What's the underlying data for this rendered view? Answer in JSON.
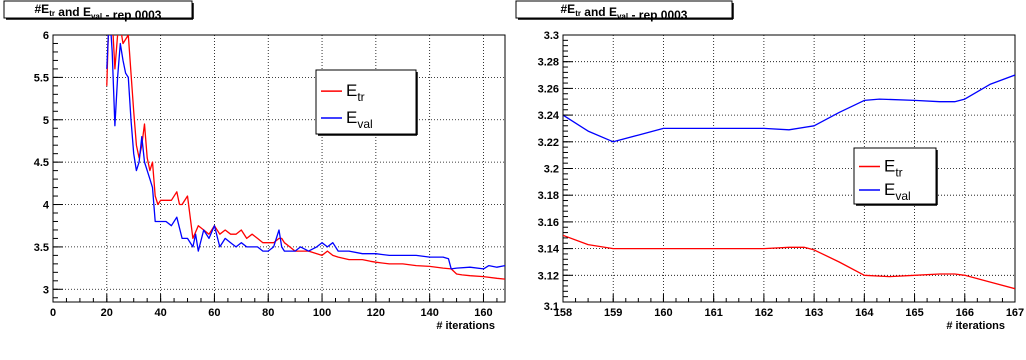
{
  "chart_data": [
    {
      "type": "line",
      "title": "#E_{tr} and E_{val} - rep 0003",
      "title_main": "#E",
      "title_sub1": "tr",
      "title_mid": " and E",
      "title_sub2": "val",
      "title_end": " - rep 0003",
      "xlabel": "# iterations",
      "ylabel": "",
      "xlim": [
        0,
        168
      ],
      "ylim": [
        2.85,
        6
      ],
      "x_ticks": [
        0,
        20,
        40,
        60,
        80,
        100,
        120,
        140,
        160
      ],
      "y_ticks": [
        3,
        3.5,
        4,
        4.5,
        5,
        5.5,
        6
      ],
      "grid": true,
      "legend_position": "top-right",
      "series": [
        {
          "name": "E_tr",
          "label_main": "E",
          "label_sub": "tr",
          "color": "#ff0000",
          "x": [
            20,
            21,
            22,
            23,
            24,
            25,
            26,
            28,
            30,
            31,
            32,
            33,
            34,
            35,
            36,
            37,
            38,
            39,
            40,
            42,
            44,
            46,
            47,
            48,
            50,
            52,
            54,
            56,
            58,
            60,
            62,
            64,
            66,
            68,
            70,
            72,
            74,
            76,
            78,
            80,
            82,
            84,
            85,
            86,
            88,
            90,
            92,
            95,
            100,
            102,
            104,
            106,
            110,
            115,
            118,
            120,
            125,
            130,
            135,
            140,
            145,
            148,
            150,
            152,
            155,
            160,
            165,
            168
          ],
          "y": [
            5.4,
            6.5,
            6.2,
            5.6,
            6.0,
            6.1,
            5.9,
            6.0,
            5.1,
            4.7,
            4.55,
            4.7,
            4.95,
            4.55,
            4.4,
            4.5,
            4.1,
            4.0,
            4.05,
            4.05,
            4.05,
            4.15,
            4.0,
            4.0,
            4.1,
            3.6,
            3.75,
            3.7,
            3.65,
            3.75,
            3.65,
            3.7,
            3.65,
            3.65,
            3.7,
            3.6,
            3.65,
            3.6,
            3.55,
            3.55,
            3.55,
            3.6,
            3.6,
            3.55,
            3.5,
            3.45,
            3.45,
            3.45,
            3.4,
            3.45,
            3.4,
            3.38,
            3.35,
            3.35,
            3.33,
            3.32,
            3.3,
            3.3,
            3.28,
            3.27,
            3.25,
            3.24,
            3.18,
            3.17,
            3.16,
            3.15,
            3.13,
            3.12
          ]
        },
        {
          "name": "E_val",
          "label_main": "E",
          "label_sub": "val",
          "color": "#0000ff",
          "x": [
            20,
            21,
            22,
            23,
            24,
            25,
            26,
            27,
            28,
            29,
            30,
            31,
            32,
            33,
            34,
            35,
            36,
            37,
            38,
            40,
            42,
            44,
            46,
            48,
            50,
            52,
            53,
            54,
            56,
            58,
            60,
            62,
            64,
            66,
            68,
            70,
            72,
            74,
            76,
            78,
            80,
            82,
            84,
            85,
            86,
            88,
            90,
            92,
            95,
            98,
            100,
            102,
            104,
            106,
            110,
            115,
            118,
            120,
            125,
            130,
            135,
            140,
            145,
            147,
            148,
            150,
            155,
            160,
            162,
            165,
            168
          ],
          "y": [
            5.6,
            6.3,
            5.8,
            4.93,
            5.5,
            5.9,
            5.7,
            5.55,
            5.5,
            5.0,
            4.6,
            4.4,
            4.5,
            4.8,
            4.5,
            4.4,
            4.3,
            4.2,
            3.8,
            3.8,
            3.8,
            3.75,
            3.85,
            3.6,
            3.6,
            3.5,
            3.65,
            3.45,
            3.7,
            3.6,
            3.75,
            3.5,
            3.6,
            3.55,
            3.5,
            3.55,
            3.5,
            3.5,
            3.5,
            3.45,
            3.45,
            3.5,
            3.7,
            3.5,
            3.45,
            3.45,
            3.45,
            3.5,
            3.45,
            3.5,
            3.55,
            3.5,
            3.55,
            3.45,
            3.45,
            3.42,
            3.42,
            3.42,
            3.4,
            3.4,
            3.4,
            3.38,
            3.38,
            3.36,
            3.24,
            3.25,
            3.26,
            3.24,
            3.28,
            3.26,
            3.28
          ]
        }
      ]
    },
    {
      "type": "line",
      "title": "#E_{tr} and E_{val} - rep 0003",
      "title_main": "#E",
      "title_sub1": "tr",
      "title_mid": " and E",
      "title_sub2": "val",
      "title_end": " - rep 0003",
      "xlabel": "# iterations",
      "ylabel": "",
      "xlim": [
        158,
        167
      ],
      "ylim": [
        3.1,
        3.3
      ],
      "x_ticks": [
        158,
        159,
        160,
        161,
        162,
        163,
        164,
        165,
        166,
        167
      ],
      "y_ticks": [
        3.1,
        3.12,
        3.14,
        3.16,
        3.18,
        3.2,
        3.22,
        3.24,
        3.26,
        3.28,
        3.3
      ],
      "y_tick_labels": [
        "3.1",
        "3.12",
        "3.14",
        "3.16",
        "3.18",
        "3.2",
        "3.22",
        "3.24",
        "3.26",
        "3.28",
        "3.3"
      ],
      "grid": true,
      "legend_position": "right-center",
      "series": [
        {
          "name": "E_tr",
          "label_main": "E",
          "label_sub": "tr",
          "color": "#ff0000",
          "x": [
            158,
            158.5,
            159,
            159.5,
            160,
            161,
            162,
            162.5,
            162.8,
            163,
            163.5,
            164,
            164.5,
            165,
            165.5,
            165.8,
            166,
            166.5,
            167
          ],
          "y": [
            3.15,
            3.143,
            3.14,
            3.14,
            3.14,
            3.14,
            3.14,
            3.141,
            3.141,
            3.139,
            3.13,
            3.12,
            3.119,
            3.12,
            3.121,
            3.121,
            3.12,
            3.115,
            3.11
          ]
        },
        {
          "name": "E_val",
          "label_main": "E",
          "label_sub": "val",
          "color": "#0000ff",
          "x": [
            158,
            158.5,
            159,
            159.5,
            160,
            161,
            162,
            162.5,
            163,
            163.5,
            164,
            164.3,
            165,
            165.5,
            165.8,
            166,
            166.5,
            167
          ],
          "y": [
            3.24,
            3.228,
            3.22,
            3.225,
            3.23,
            3.23,
            3.23,
            3.229,
            3.232,
            3.242,
            3.251,
            3.252,
            3.251,
            3.25,
            3.25,
            3.252,
            3.263,
            3.27
          ]
        }
      ]
    }
  ]
}
